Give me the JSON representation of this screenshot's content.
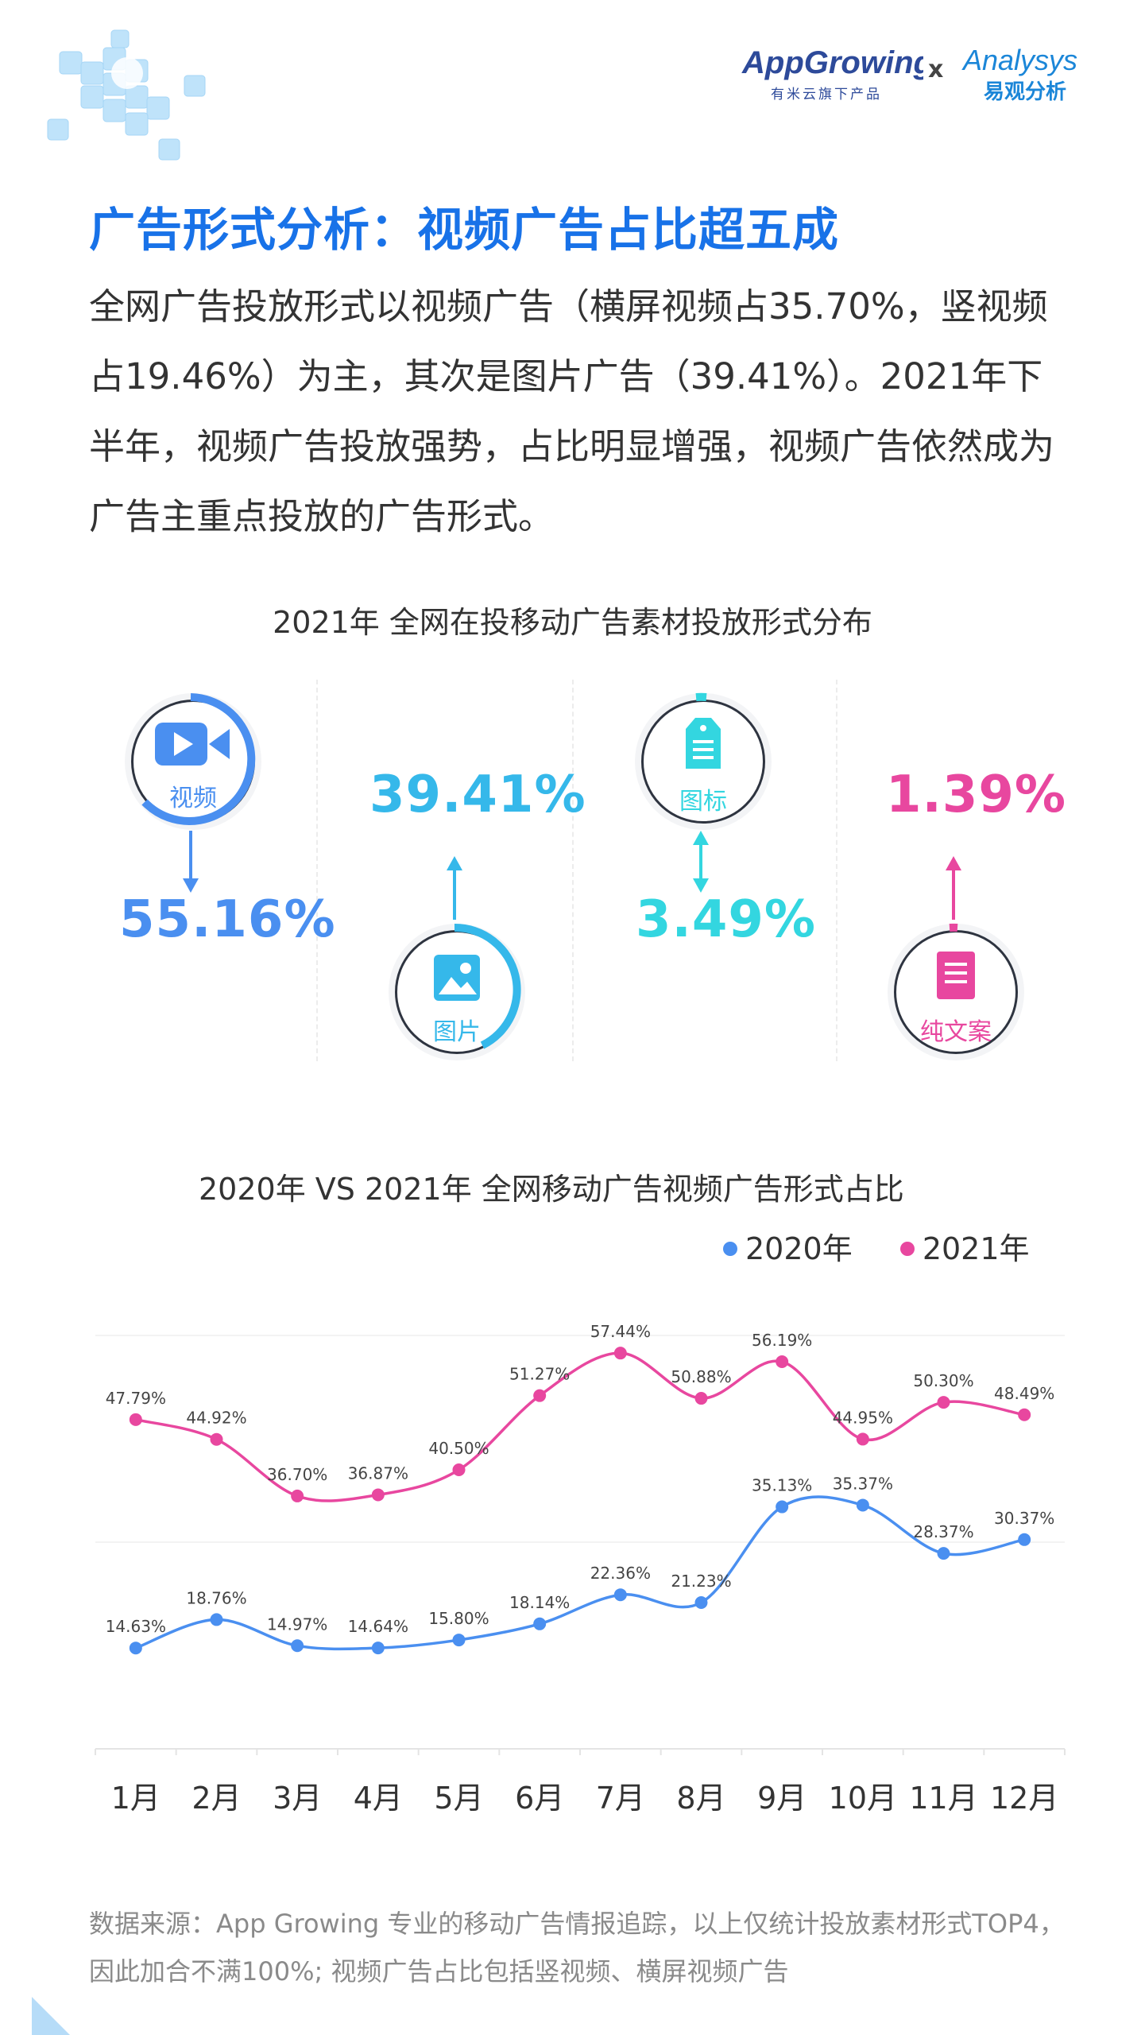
{
  "header": {
    "appgrowing_logo": "AppGrowing",
    "appgrowing_subtitle": "有米云旗下产品",
    "x_sep": "x",
    "analysys_logo": "Analysys",
    "analysys_subtitle": "易观分析"
  },
  "page_title": "广告形式分析：视频广告占比超五成",
  "intro": "全网广告投放形式以视频广告（横屏视频占35.70%，竖视频占19.46%）为主，其次是图片广告（39.41%）。2021年下半年，视频广告投放强势，占比明显增强，视频广告依然成为广告主重点投放的广告形式。",
  "distribution": {
    "title": "2021年 全网在投移动广告素材投放形式分布",
    "items": [
      {
        "label": "视频",
        "value": "55.16%",
        "color": "#4a8ff0",
        "icon": "video-camera-icon"
      },
      {
        "label": "图片",
        "value": "39.41%",
        "color": "#35b8ea",
        "icon": "picture-icon"
      },
      {
        "label": "图标",
        "value": "3.49%",
        "color": "#33d6e0",
        "icon": "tag-icon"
      },
      {
        "label": "纯文案",
        "value": "1.39%",
        "color": "#e8479f",
        "icon": "document-icon"
      }
    ]
  },
  "chart_data": {
    "type": "line",
    "title": "2020年 VS 2021年 全网移动广告视频广告形式占比",
    "categories": [
      "1月",
      "2月",
      "3月",
      "4月",
      "5月",
      "6月",
      "7月",
      "8月",
      "9月",
      "10月",
      "11月",
      "12月"
    ],
    "series": [
      {
        "name": "2020年",
        "color": "#4a8ff0",
        "values": [
          14.63,
          18.76,
          14.97,
          14.64,
          15.8,
          18.14,
          22.36,
          21.23,
          35.13,
          35.37,
          28.37,
          30.37
        ],
        "labels": [
          "14.63%",
          "18.76%",
          "14.97%",
          "14.64%",
          "15.80%",
          "18.14%",
          "22.36%",
          "21.23%",
          "35.13%",
          "35.37%",
          "28.37%",
          "30.37%"
        ]
      },
      {
        "name": "2021年",
        "color": "#e8479f",
        "values": [
          47.79,
          44.92,
          36.7,
          36.87,
          40.5,
          51.27,
          57.44,
          50.88,
          56.19,
          44.95,
          50.3,
          48.49
        ],
        "labels": [
          "47.79%",
          "44.92%",
          "36.70%",
          "36.87%",
          "40.50%",
          "51.27%",
          "57.44%",
          "50.88%",
          "56.19%",
          "44.95%",
          "50.30%",
          "48.49%"
        ]
      }
    ],
    "ylim": [
      0,
      60
    ],
    "legend_position": "top-right",
    "grid": true
  },
  "footnote": "数据来源：App Growing 专业的移动广告情报追踪，以上仅统计投放素材形式TOP4，因此加合不满100%; 视频广告占比包括竖视频、横屏视频广告"
}
